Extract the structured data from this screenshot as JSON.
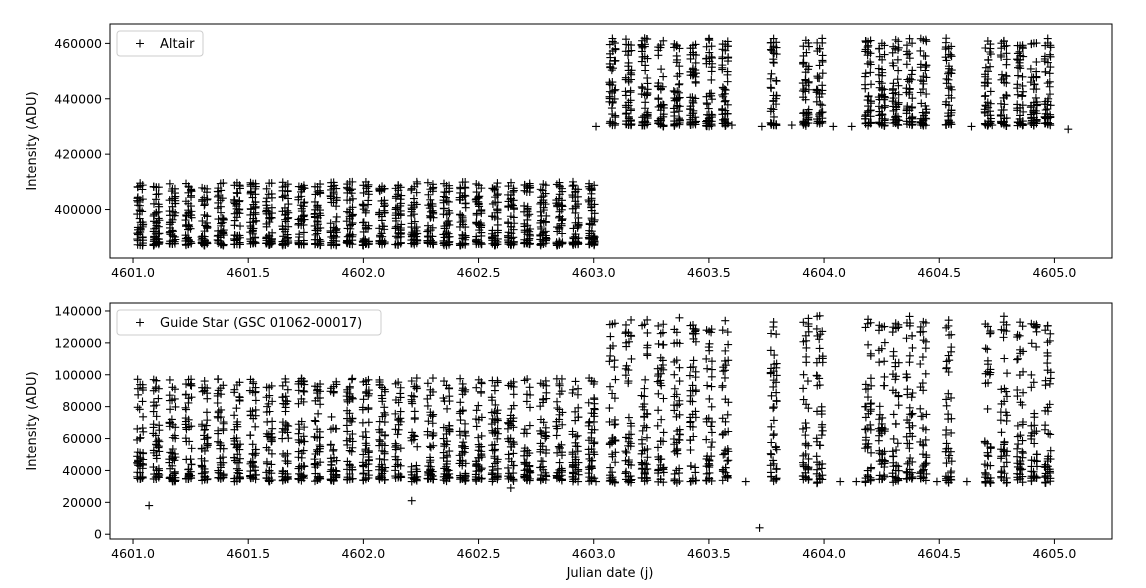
{
  "figure": {
    "xlabel": "Julian date (j)"
  },
  "chart_data": [
    {
      "type": "scatter",
      "marker": "+",
      "title": "",
      "xlabel": "",
      "ylabel": "Intensity (ADU)",
      "xlim": [
        4600.9,
        4605.25
      ],
      "ylim": [
        382500,
        467000
      ],
      "xticks": [
        4601.0,
        4601.5,
        4602.0,
        4602.5,
        4603.0,
        4603.5,
        4604.0,
        4604.5,
        4605.0
      ],
      "xtick_labels": [
        "4601.0",
        "4601.5",
        "4602.0",
        "4602.5",
        "4603.0",
        "4603.5",
        "4604.0",
        "4604.5",
        "4605.0"
      ],
      "yticks": [
        400000,
        420000,
        440000,
        460000
      ],
      "ytick_labels": [
        "400000",
        "420000",
        "440000",
        "460000"
      ],
      "legend": {
        "label": "Altair",
        "position": "top-left"
      },
      "series": [
        {
          "name": "Altair",
          "color": "#000000",
          "nights_start": [
            4601.02,
            4601.09,
            4601.16,
            4601.23,
            4601.3,
            4601.37,
            4601.44,
            4601.51,
            4601.58,
            4601.65,
            4601.72,
            4601.79,
            4601.86,
            4601.93,
            4602.0,
            4602.07,
            4602.14,
            4602.21,
            4602.28,
            4602.35,
            4602.42,
            4602.49,
            4602.56,
            4602.63,
            4602.7,
            4602.77,
            4602.84,
            4602.91,
            4602.98
          ],
          "nights_end": [
            4603.07,
            4603.14,
            4603.21,
            4603.28,
            4603.35,
            4603.42,
            4603.49,
            4603.56,
            4603.77,
            4603.91,
            4603.97,
            4604.18,
            4604.24,
            4604.3,
            4604.36,
            4604.42,
            4604.53,
            4604.7,
            4604.77,
            4604.84,
            4604.9,
            4604.96
          ],
          "start_range": [
            387000,
            410000
          ],
          "end_range": [
            430000,
            462000
          ],
          "gap_points": [
            [
              4603.01,
              430000
            ],
            [
              4603.6,
              430500
            ],
            [
              4603.73,
              430000
            ],
            [
              4603.86,
              430500
            ],
            [
              4604.04,
              430000
            ],
            [
              4604.12,
              430000
            ],
            [
              4604.64,
              430000
            ],
            [
              4604.73,
              430500
            ],
            [
              4605.06,
              429000
            ]
          ]
        }
      ]
    },
    {
      "type": "scatter",
      "marker": "+",
      "title": "",
      "xlabel": "Julian date (j)",
      "ylabel": "Intensity (ADU)",
      "xlim": [
        4600.9,
        4605.25
      ],
      "ylim": [
        -3000,
        145000
      ],
      "xticks": [
        4601.0,
        4601.5,
        4602.0,
        4602.5,
        4603.0,
        4603.5,
        4604.0,
        4604.5,
        4605.0
      ],
      "xtick_labels": [
        "4601.0",
        "4601.5",
        "4602.0",
        "4602.5",
        "4603.0",
        "4603.5",
        "4604.0",
        "4604.5",
        "4605.0"
      ],
      "yticks": [
        0,
        20000,
        40000,
        60000,
        80000,
        100000,
        120000,
        140000
      ],
      "ytick_labels": [
        "0",
        "20000",
        "40000",
        "60000",
        "80000",
        "100000",
        "120000",
        "140000"
      ],
      "legend": {
        "label": "Guide Star (GSC 01062-00017)",
        "position": "top-left"
      },
      "series": [
        {
          "name": "Guide Star (GSC 01062-00017)",
          "color": "#000000",
          "nights_start": [
            4601.02,
            4601.09,
            4601.16,
            4601.23,
            4601.3,
            4601.37,
            4601.44,
            4601.51,
            4601.58,
            4601.65,
            4601.72,
            4601.79,
            4601.86,
            4601.93,
            4602.0,
            4602.07,
            4602.14,
            4602.21,
            4602.28,
            4602.35,
            4602.42,
            4602.49,
            4602.56,
            4602.63,
            4602.7,
            4602.77,
            4602.84,
            4602.91,
            4602.98
          ],
          "nights_end": [
            4603.07,
            4603.14,
            4603.21,
            4603.28,
            4603.35,
            4603.42,
            4603.49,
            4603.56,
            4603.77,
            4603.91,
            4603.97,
            4604.18,
            4604.24,
            4604.3,
            4604.36,
            4604.42,
            4604.53,
            4604.7,
            4604.77,
            4604.84,
            4604.9,
            4604.96
          ],
          "start_range": [
            33000,
            98000
          ],
          "end_range": [
            32000,
            137000
          ],
          "gap_points": [
            [
              4601.07,
              18000
            ],
            [
              4602.21,
              21000
            ],
            [
              4602.64,
              29000
            ],
            [
              4603.01,
              33000
            ],
            [
              4603.66,
              33000
            ],
            [
              4603.72,
              4000
            ],
            [
              4604.07,
              33000
            ],
            [
              4604.14,
              33000
            ],
            [
              4604.49,
              33000
            ],
            [
              4604.62,
              33000
            ],
            [
              4604.7,
              33000
            ]
          ]
        }
      ]
    }
  ]
}
